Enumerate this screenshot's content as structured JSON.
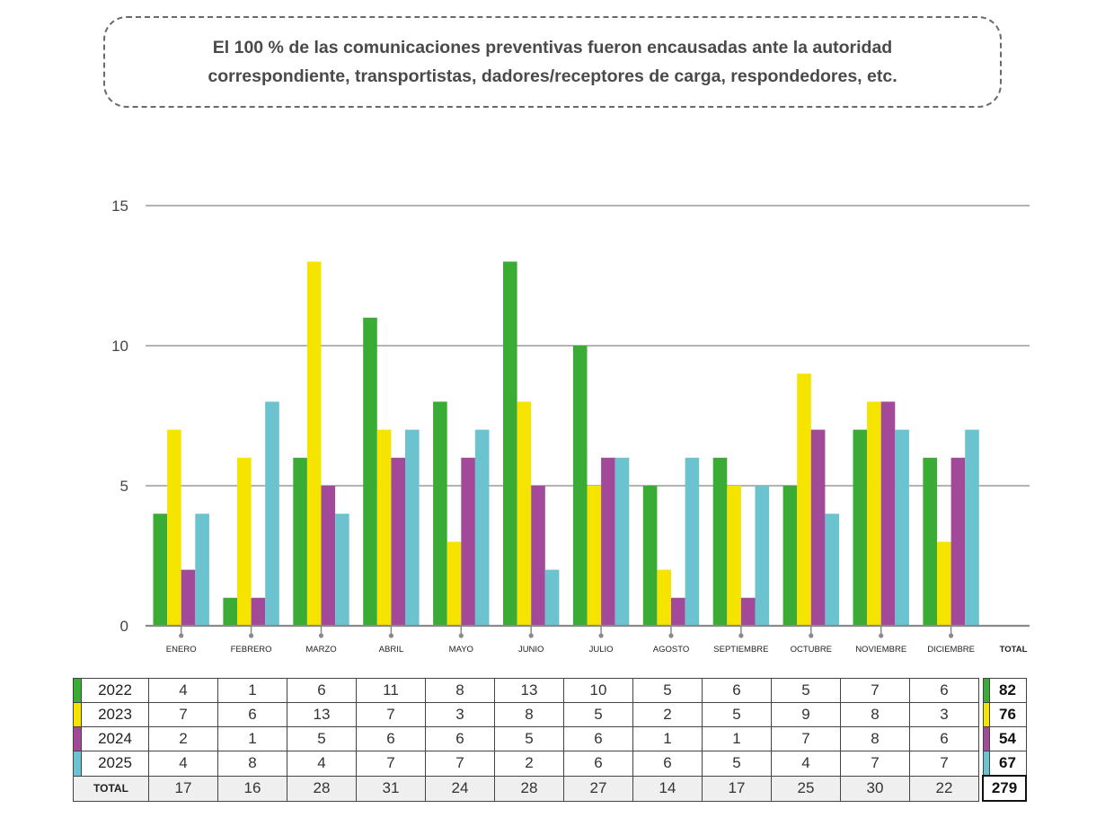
{
  "note": {
    "line1": "El 100 % de las comunicaciones preventivas fueron encausadas ante la autoridad",
    "line2": "correspondiente, transportistas, dadores/receptores de carga, respondedores, etc."
  },
  "colors": {
    "2022": "#3aab35",
    "2023": "#f4e400",
    "2024": "#a24a99",
    "2025": "#6cc3d0",
    "grid": "#9a9a9a",
    "axis": "#8a8a8a"
  },
  "chart_data": {
    "type": "bar",
    "categories": [
      "ENERO",
      "FEBRERO",
      "MARZO",
      "ABRIL",
      "MAYO",
      "JUNIO",
      "JULIO",
      "AGOSTO",
      "SEPTIEMBRE",
      "OCTUBRE",
      "NOVIEMBRE",
      "DICIEMBRE"
    ],
    "total_label": "TOTAL",
    "series": [
      {
        "name": "2022",
        "values": [
          4,
          1,
          6,
          11,
          8,
          13,
          10,
          5,
          6,
          5,
          7,
          6
        ],
        "total": 82
      },
      {
        "name": "2023",
        "values": [
          7,
          6,
          13,
          7,
          3,
          8,
          5,
          2,
          5,
          9,
          8,
          3
        ],
        "total": 76
      },
      {
        "name": "2024",
        "values": [
          2,
          1,
          5,
          6,
          6,
          5,
          6,
          1,
          1,
          7,
          8,
          6
        ],
        "total": 54
      },
      {
        "name": "2025",
        "values": [
          4,
          8,
          4,
          7,
          7,
          2,
          6,
          6,
          5,
          4,
          7,
          7
        ],
        "total": 67
      }
    ],
    "yticks": [
      "0",
      "5",
      "10",
      "15"
    ],
    "ylim": [
      0,
      15
    ],
    "grid": true,
    "month_totals": [
      17,
      16,
      28,
      31,
      24,
      28,
      27,
      14,
      17,
      25,
      30,
      22
    ],
    "grand_total": 279,
    "xlabel": "",
    "ylabel": ""
  }
}
